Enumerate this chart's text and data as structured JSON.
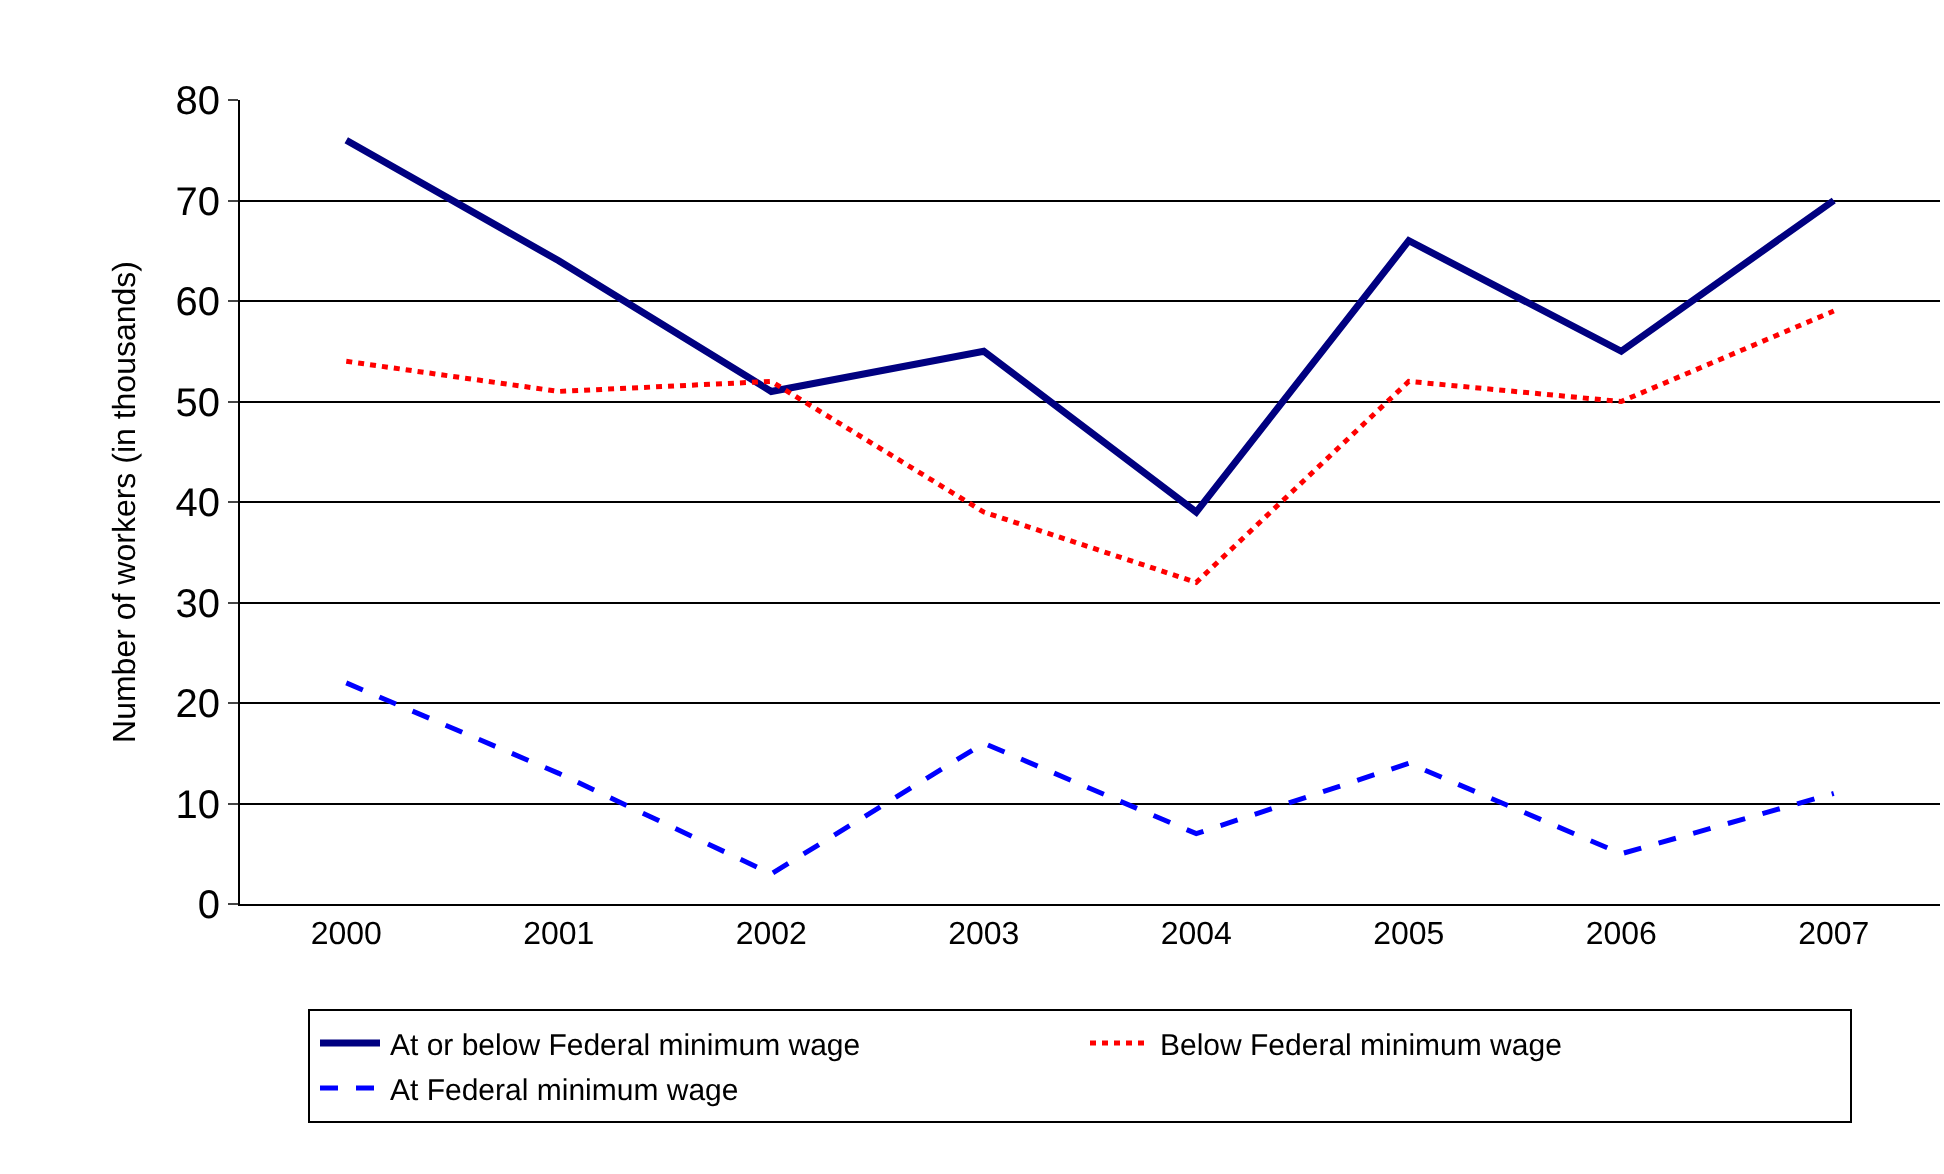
{
  "chart_data": {
    "type": "line",
    "ylabel": "Number of workers (in thousands)",
    "categories": [
      "2000",
      "2001",
      "2002",
      "2003",
      "2004",
      "2005",
      "2006",
      "2007"
    ],
    "series": [
      {
        "name": "At or below Federal minimum wage",
        "color": "#000080",
        "line_style": "solid",
        "values": [
          76,
          64,
          51,
          55,
          39,
          66,
          55,
          70
        ]
      },
      {
        "name": "Below Federal minimum wage",
        "color": "#ff0000",
        "line_style": "dotted",
        "values": [
          54,
          51,
          52,
          39,
          32,
          52,
          50,
          59
        ]
      },
      {
        "name": "At Federal minimum wage",
        "color": "#0000ff",
        "line_style": "dashed",
        "values": [
          22,
          13,
          3,
          16,
          7,
          14,
          5,
          11
        ]
      }
    ],
    "ylim": [
      0,
      80
    ],
    "yticks": [
      0,
      10,
      20,
      30,
      40,
      50,
      60,
      70,
      80
    ],
    "grid": "y",
    "legend": "bottom",
    "marker": "none"
  }
}
